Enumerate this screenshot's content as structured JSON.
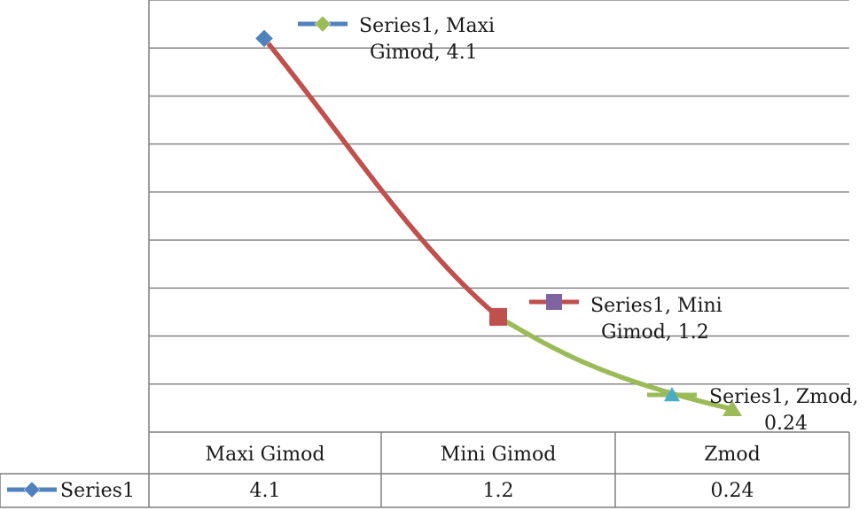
{
  "chart_data": {
    "type": "line",
    "categories": [
      "Maxi Gimod",
      "Mini Gimod",
      "Zmod"
    ],
    "series": [
      {
        "name": "Series1",
        "values": [
          4.1,
          1.2,
          0.24
        ],
        "color": "#c0504d",
        "marker_color": "#4f81bd"
      }
    ],
    "ylim": [
      0,
      4.5
    ],
    "grid": true,
    "legend": "data-table-row",
    "data_table": true,
    "data_labels": [
      {
        "lines": [
          "Series1, Maxi",
          "Gimod, 4.1"
        ],
        "key_line": "#4f81bd",
        "key_marker": "#9bbb59",
        "key_shape": "diamond"
      },
      {
        "lines": [
          "Series1, Mini",
          "Gimod, 1.2"
        ],
        "key_line": "#c0504d",
        "key_marker": "#8064a2",
        "key_shape": "square"
      },
      {
        "lines": [
          "Series1, Zmod,",
          "0.24"
        ],
        "key_line": "#9bbb59",
        "key_marker": "#4bacc6",
        "key_shape": "triangle"
      }
    ],
    "point_markers": [
      {
        "shape": "diamond",
        "color": "#4f81bd"
      },
      {
        "shape": "square",
        "color": "#c0504d"
      },
      {
        "shape": "triangle",
        "color": "#4bacc6"
      }
    ],
    "segment_colors": [
      "#c0504d",
      "#9bbb59"
    ],
    "table_values": [
      "4.1",
      "1.2",
      "0.24"
    ]
  }
}
